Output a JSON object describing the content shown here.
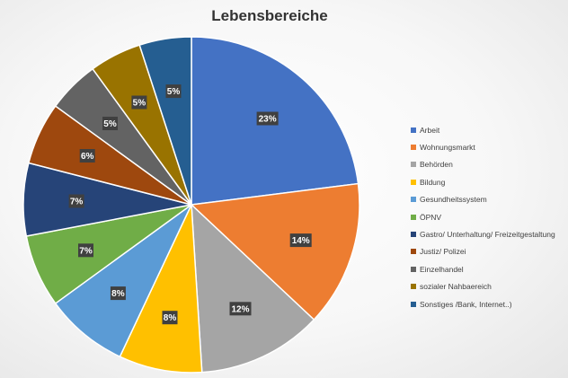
{
  "chart_data": {
    "type": "pie",
    "title": "Lebensbereiche",
    "legend_position": "right",
    "slices": [
      {
        "label": "Arbeit",
        "value": 23,
        "display": "23%",
        "color": "#4472C4"
      },
      {
        "label": "Wohnungsmarkt",
        "value": 14,
        "display": "14%",
        "color": "#ED7D31"
      },
      {
        "label": "Behörden",
        "value": 12,
        "display": "12%",
        "color": "#A5A5A5"
      },
      {
        "label": "Bildung",
        "value": 8,
        "display": "8%",
        "color": "#FFC000"
      },
      {
        "label": "Gesundheitssystem",
        "value": 8,
        "display": "8%",
        "color": "#5B9BD5"
      },
      {
        "label": "ÖPNV",
        "value": 7,
        "display": "7%",
        "color": "#70AD47"
      },
      {
        "label": "Gastro/ Unterhaltung/ Freizeitgestaltung",
        "value": 7,
        "display": "7%",
        "color": "#264478"
      },
      {
        "label": "Justiz/ Polizei",
        "value": 6,
        "display": "6%",
        "color": "#9E480E"
      },
      {
        "label": "Einzelhandel",
        "value": 5,
        "display": "5%",
        "color": "#636363"
      },
      {
        "label": "sozialer Nahbaereich",
        "value": 5,
        "display": "5%",
        "color": "#997300"
      },
      {
        "label": "Sonstiges /Bank, Internet..)",
        "value": 5,
        "display": "5%",
        "color": "#255E91"
      }
    ]
  }
}
